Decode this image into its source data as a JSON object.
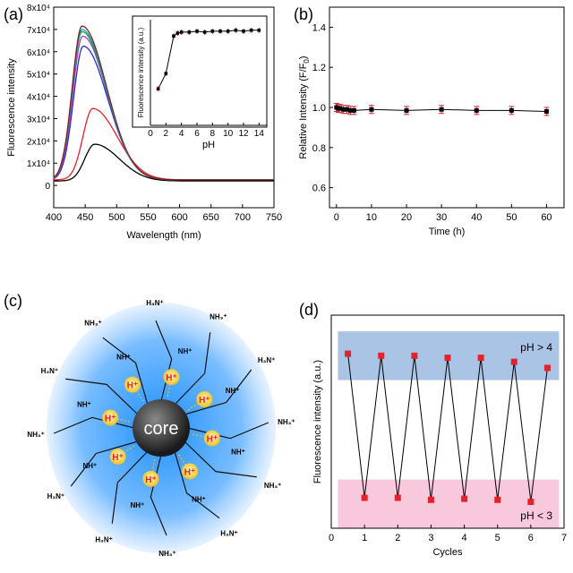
{
  "colors": {
    "black": "#000000",
    "red": "#e8202a",
    "blue": "#2828d8",
    "purple": "#9b3fb0",
    "green": "#1aa04a",
    "teal": "#0aa6b8",
    "brown": "#8b1c1c",
    "halo": "#1e90ff",
    "band_high": "#aac4e6",
    "band_low": "#f8c8dc",
    "marker_red": "#e8202a"
  },
  "panels": {
    "a": {
      "tag": "(a)"
    },
    "b": {
      "tag": "(b)"
    },
    "c": {
      "tag": "(c)"
    },
    "d": {
      "tag": "(d)"
    }
  },
  "chart_data": [
    {
      "id": "a",
      "type": "line",
      "xlabel": "Wavelength (nm)",
      "ylabel": "Fluorescence intensity",
      "xlim": [
        400,
        750
      ],
      "ylim": [
        -10000,
        80000
      ],
      "xticks": [
        400,
        450,
        500,
        550,
        600,
        650,
        700,
        750
      ],
      "yticks": [
        {
          "v": 0,
          "t": "0"
        },
        {
          "v": 10000,
          "t": "1x10⁴"
        },
        {
          "v": 20000,
          "t": "2x10⁴"
        },
        {
          "v": 30000,
          "t": "3x10⁴"
        },
        {
          "v": 40000,
          "t": "4x10⁴"
        },
        {
          "v": 50000,
          "t": "5x10⁴"
        },
        {
          "v": 60000,
          "t": "6x10⁴"
        },
        {
          "v": 70000,
          "t": "7x10⁴"
        },
        {
          "v": 80000,
          "t": "8x10⁴"
        }
      ],
      "series": [
        {
          "color": "black",
          "peak_nm": 465,
          "peak": 18500,
          "base": 2000
        },
        {
          "color": "red",
          "peak_nm": 462,
          "peak": 34500,
          "base": 2500
        },
        {
          "color": "blue",
          "peak_nm": 447,
          "peak": 62500,
          "base": 2500
        },
        {
          "color": "purple",
          "peak_nm": 446,
          "peak": 67000,
          "base": 2500
        },
        {
          "color": "green",
          "peak_nm": 445,
          "peak": 69000,
          "base": 2500
        },
        {
          "color": "teal",
          "peak_nm": 445,
          "peak": 70000,
          "base": 2500
        },
        {
          "color": "brown",
          "peak_nm": 445,
          "peak": 71500,
          "base": 2500
        }
      ]
    },
    {
      "id": "a-inset",
      "type": "line",
      "xlabel": "pH",
      "ylabel": "Fluorescence intensity (a.u.)",
      "xlim": [
        0,
        15
      ],
      "ylim": [
        0,
        1.1
      ],
      "xticks": [
        0,
        2,
        4,
        6,
        8,
        10,
        12,
        14
      ],
      "x": [
        1,
        2,
        3,
        3.5,
        4,
        5,
        6,
        7,
        8,
        9,
        10,
        11,
        12,
        13,
        14
      ],
      "y": [
        0.38,
        0.54,
        0.93,
        0.96,
        0.97,
        0.97,
        0.98,
        0.97,
        0.98,
        0.98,
        0.98,
        0.99,
        0.98,
        0.99,
        0.99
      ]
    },
    {
      "id": "b",
      "type": "scatter",
      "xlabel": "Time (h)",
      "ylabel": "Relative Intensity (F/F",
      "ylabel_sub": "0",
      "ylabel_end": ")",
      "xlim": [
        -2,
        65
      ],
      "ylim": [
        0.5,
        1.5
      ],
      "xticks": [
        0,
        10,
        20,
        30,
        40,
        50,
        60
      ],
      "yticks": [
        0.6,
        0.8,
        1.0,
        1.2,
        1.4
      ],
      "x": [
        0,
        0.5,
        1,
        2,
        3,
        4,
        5,
        10,
        20,
        30,
        40,
        50,
        60
      ],
      "y": [
        1.0,
        0.995,
        0.995,
        0.99,
        0.99,
        0.985,
        0.985,
        0.99,
        0.985,
        0.99,
        0.985,
        0.985,
        0.98
      ],
      "err": [
        0.02,
        0.02,
        0.02,
        0.02,
        0.02,
        0.02,
        0.02,
        0.02,
        0.02,
        0.02,
        0.02,
        0.02,
        0.02
      ]
    },
    {
      "id": "d",
      "type": "line",
      "xlabel": "Cycles",
      "ylabel": "Fluorescence intensity (a.u.)",
      "xlim": [
        0,
        7
      ],
      "ylim": [
        0,
        1.05
      ],
      "xticks": [
        0,
        1,
        2,
        3,
        4,
        5,
        6,
        7
      ],
      "x": [
        0.5,
        1,
        1.5,
        2,
        2.5,
        3,
        3.5,
        4,
        4.5,
        5,
        5.5,
        6,
        6.5
      ],
      "y": [
        0.86,
        0.15,
        0.85,
        0.15,
        0.85,
        0.14,
        0.84,
        0.145,
        0.84,
        0.14,
        0.82,
        0.13,
        0.79
      ],
      "bands": [
        {
          "label": "pH > 4",
          "from": 0.73,
          "to": 0.97,
          "color": "band_high"
        },
        {
          "label": "pH < 3",
          "from": 0.0,
          "to": 0.24,
          "color": "band_low"
        }
      ]
    }
  ],
  "diagram_c": {
    "core_label": "core",
    "proton_label": "H⁺",
    "proton_count": 8,
    "ligands": [
      "H₃N⁺",
      "NH₃⁺",
      "H₃N⁺",
      "NH₃⁺",
      "NH₃⁺",
      "H₃N⁺",
      "NH₃⁺",
      "H₃N⁺",
      "H₃N⁺",
      "NH₃⁺",
      "H₃N⁺",
      "NH₃⁺"
    ],
    "amine_label": "NH⁺",
    "amine_count": 8
  }
}
